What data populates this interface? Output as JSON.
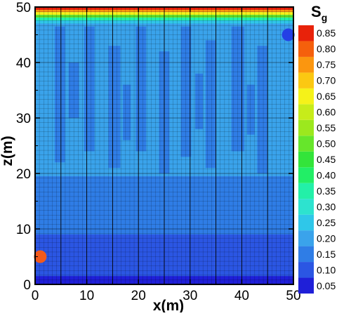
{
  "chart_data": {
    "type": "heatmap",
    "xlabel": "x(m)",
    "ylabel": "z(m)",
    "xlim": [
      0,
      50
    ],
    "ylim": [
      0,
      50
    ],
    "x_ticks": [
      "0",
      "10",
      "20",
      "30",
      "40",
      "50"
    ],
    "y_ticks": [
      "0",
      "10",
      "20",
      "30",
      "40",
      "50"
    ],
    "colorbar": {
      "title_main": "S",
      "title_sub": "g",
      "levels": [
        "0.05",
        "0.10",
        "0.15",
        "0.20",
        "0.25",
        "0.30",
        "0.35",
        "0.40",
        "0.45",
        "0.50",
        "0.55",
        "0.60",
        "0.65",
        "0.70",
        "0.75",
        "0.80",
        "0.85"
      ],
      "colors": [
        "#1f1fd8",
        "#2b56e3",
        "#2f7de6",
        "#3aa3eb",
        "#2fc7e9",
        "#2de3cf",
        "#23f0a8",
        "#22ee66",
        "#33e43a",
        "#66e62b",
        "#9ce81e",
        "#c7ec1a",
        "#f5f219",
        "#fbc812",
        "#fb960f",
        "#f5600c",
        "#e8220a"
      ]
    },
    "grid_lines": "on",
    "field": {
      "background_sg": 0.15,
      "regions": [
        {
          "name": "top gas cap",
          "x": [
            0,
            50
          ],
          "z": [
            47.0,
            50.0
          ],
          "sg_range": [
            0.25,
            0.85
          ]
        },
        {
          "name": "upper light band",
          "x": [
            0,
            50
          ],
          "z": [
            19.5,
            46.5
          ],
          "sg_range": [
            0.15,
            0.2
          ]
        },
        {
          "name": "bottom layer",
          "x": [
            0,
            50
          ],
          "z": [
            0,
            1.5
          ],
          "sg": 0.05
        },
        {
          "name": "lower layer",
          "x": [
            0,
            50
          ],
          "z": [
            1.5,
            9.0
          ],
          "sg": 0.1
        }
      ]
    },
    "wells": [
      {
        "name": "injector",
        "x": 1.0,
        "z": 5.0,
        "color": "#f25a1c"
      },
      {
        "name": "producer",
        "x": 49.0,
        "z": 45.0,
        "color": "#2440e6"
      }
    ]
  }
}
